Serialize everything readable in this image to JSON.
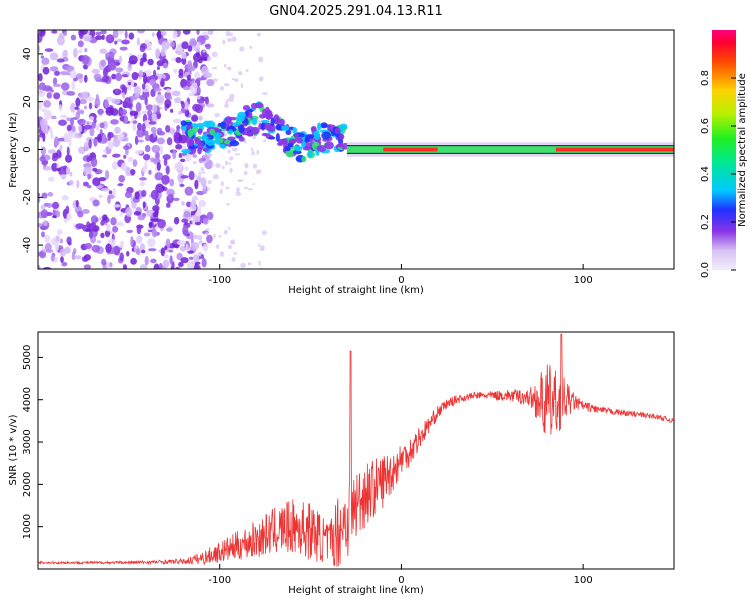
{
  "title": "GN04.2025.291.04.13.R11",
  "chart_data": [
    {
      "type": "heatmap",
      "subtitle": "spectrogram",
      "xlabel": "Height of straight line (km)",
      "ylabel": "Frequency (Hz)",
      "xlim": [
        -200,
        150
      ],
      "ylim": [
        -50,
        50
      ],
      "xticks": [
        -100,
        0,
        100
      ],
      "xtick_labels": [
        "-100",
        "0",
        "100"
      ],
      "yticks": [
        -40,
        -20,
        0,
        20,
        40
      ],
      "ytick_labels": [
        "-40",
        "-20",
        "0",
        "20",
        "40"
      ],
      "colorbar": {
        "label": "Normalized spectral amplitude",
        "range": [
          0,
          1
        ],
        "ticks": [
          0.0,
          0.2,
          0.4,
          0.6,
          0.8
        ],
        "tick_labels": [
          "0.0",
          "0.2",
          "0.4",
          "0.6",
          "0.8"
        ]
      },
      "features": [
        {
          "name": "noise",
          "x_range": [
            -200,
            -115
          ],
          "y_range": [
            -50,
            50
          ],
          "amplitude": 0.1
        },
        {
          "name": "signal-onset",
          "x_range": [
            -120,
            -30
          ],
          "y_center": 5,
          "amplitude": 0.3
        },
        {
          "name": "carrier",
          "x_range": [
            -30,
            150
          ],
          "y_center": 0,
          "amplitude": 0.85
        }
      ]
    },
    {
      "type": "line",
      "xlabel": "Height of straight line (km)",
      "ylabel": "SNR (10 * v/v)",
      "xlim": [
        -200,
        150
      ],
      "ylim": [
        0,
        5600
      ],
      "xticks": [
        -100,
        0,
        100
      ],
      "xtick_labels": [
        "-100",
        "0",
        "100"
      ],
      "yticks": [
        1000,
        2000,
        3000,
        4000,
        5000
      ],
      "ytick_labels": [
        "1000",
        "2000",
        "3000",
        "4000",
        "5000"
      ],
      "series": [
        {
          "name": "SNR",
          "color": "#ee3333",
          "x": [
            -200,
            -180,
            -160,
            -140,
            -120,
            -110,
            -100,
            -90,
            -80,
            -70,
            -60,
            -50,
            -40,
            -35,
            -30,
            -25,
            -20,
            -15,
            -10,
            -5,
            0,
            5,
            10,
            15,
            20,
            25,
            30,
            40,
            50,
            60,
            70,
            75,
            80,
            85,
            90,
            95,
            100,
            110,
            120,
            130,
            140,
            150
          ],
          "values": [
            150,
            150,
            150,
            160,
            180,
            250,
            400,
            550,
            700,
            900,
            1000,
            900,
            600,
            900,
            1200,
            1500,
            1800,
            1900,
            2100,
            2300,
            2600,
            2800,
            3100,
            3400,
            3700,
            3900,
            4000,
            4100,
            4100,
            4100,
            4050,
            4000,
            3900,
            3900,
            4000,
            3950,
            3850,
            3750,
            3700,
            3650,
            3600,
            3500
          ],
          "noise": [
            30,
            30,
            30,
            40,
            60,
            150,
            250,
            350,
            450,
            550,
            650,
            700,
            500,
            900,
            1000,
            900,
            800,
            700,
            650,
            500,
            400,
            350,
            300,
            200,
            150,
            120,
            100,
            80,
            100,
            150,
            200,
            500,
            1000,
            800,
            500,
            200,
            120,
            80,
            70,
            70,
            60,
            60
          ]
        }
      ]
    }
  ]
}
